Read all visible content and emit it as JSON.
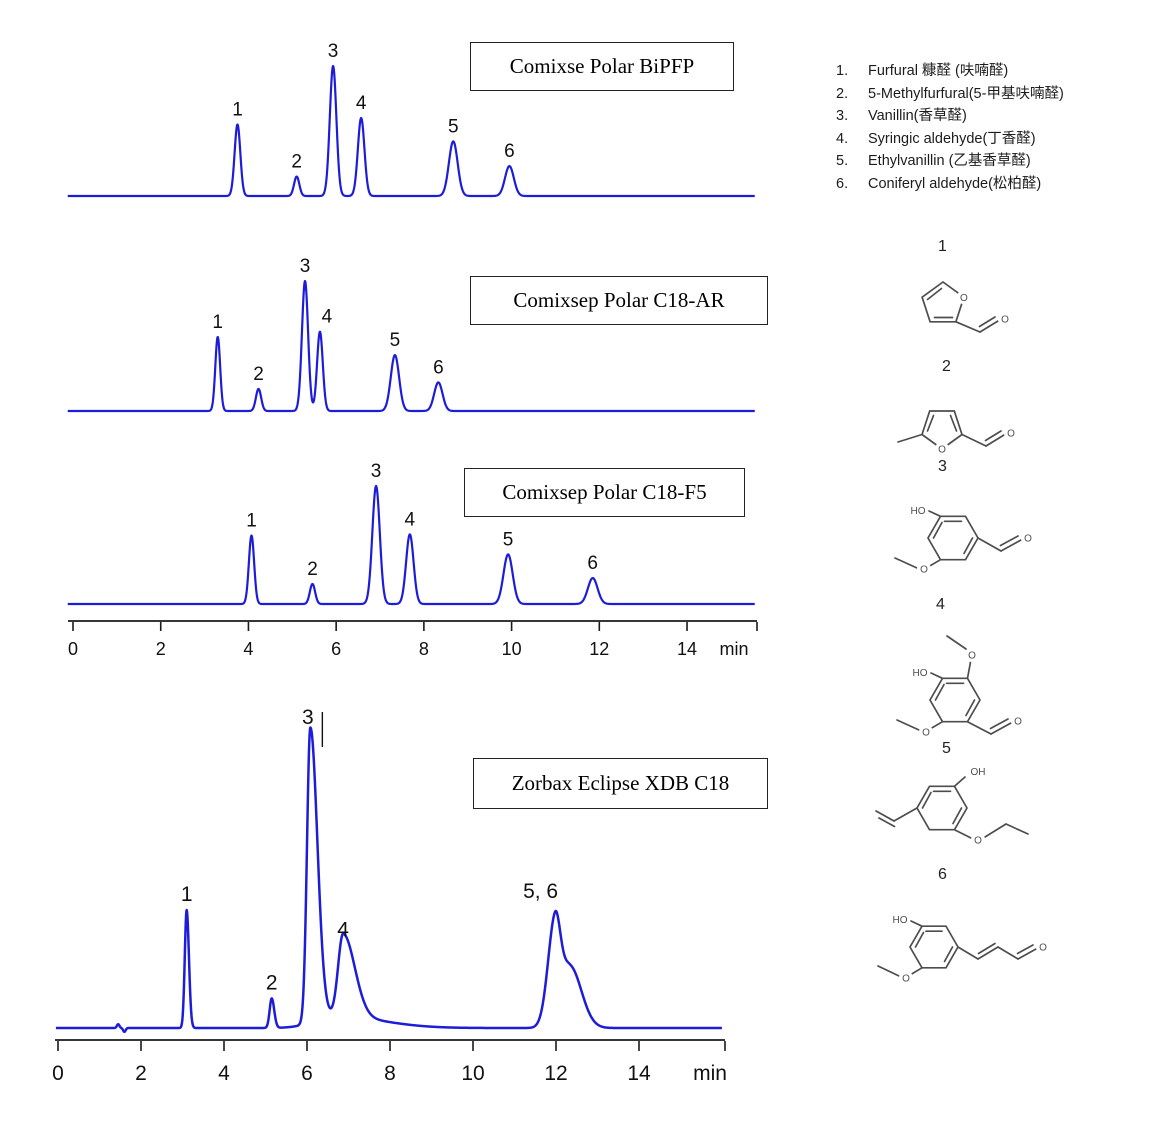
{
  "page": {
    "background": "#ffffff",
    "trace_color": "#1d1dd9",
    "axis_color": "#1a1a1a"
  },
  "legend": {
    "items": [
      {
        "num": "1.",
        "label": "Furfural 糠醛 (呋喃醛)"
      },
      {
        "num": "2.",
        "label": "5-Methylfurfural(5-甲基呋喃醛)"
      },
      {
        "num": "3.",
        "label": "Vanillin(香草醛)"
      },
      {
        "num": "4.",
        "label": "Syringic aldehyde(丁香醛)"
      },
      {
        "num": "5.",
        "label": "Ethylvanillin (乙基香草醛)"
      },
      {
        "num": "6.",
        "label": "Coniferyl aldehyde(松柏醛)"
      }
    ]
  },
  "structures": [
    {
      "label": "1",
      "name": "furfural"
    },
    {
      "label": "2",
      "name": "5-methylfurfural"
    },
    {
      "label": "3",
      "name": "vanillin"
    },
    {
      "label": "4",
      "name": "syringic-aldehyde"
    },
    {
      "label": "5",
      "name": "ethylvanillin"
    },
    {
      "label": "6",
      "name": "coniferyl-aldehyde"
    }
  ],
  "chart_data": {
    "type": "line",
    "x_axis": {
      "ticks": [
        0,
        2,
        4,
        6,
        8,
        10,
        12,
        14
      ],
      "unit_label": "min",
      "range_min": [
        0,
        15.6
      ]
    },
    "y_axis": {
      "label": "",
      "normalized": true
    },
    "trace_color": "#1d1dd9",
    "chromatograms": [
      {
        "title": "Comixse Polar BiPFP",
        "peaks": [
          {
            "label": "1",
            "rt": 3.75,
            "height": 0.55,
            "sigma": 0.065
          },
          {
            "label": "2",
            "rt": 5.1,
            "height": 0.15,
            "sigma": 0.06
          },
          {
            "label": "3",
            "rt": 5.93,
            "height": 1.0,
            "sigma": 0.075
          },
          {
            "label": "4",
            "rt": 6.57,
            "height": 0.6,
            "sigma": 0.075
          },
          {
            "label": "5",
            "rt": 8.67,
            "height": 0.42,
            "sigma": 0.1
          },
          {
            "label": "6",
            "rt": 9.95,
            "height": 0.23,
            "sigma": 0.1
          }
        ]
      },
      {
        "title": "Comixsep Polar C18-AR",
        "peaks": [
          {
            "label": "1",
            "rt": 3.3,
            "height": 0.57,
            "sigma": 0.055
          },
          {
            "label": "2",
            "rt": 4.23,
            "height": 0.17,
            "sigma": 0.06
          },
          {
            "label": "3",
            "rt": 5.29,
            "height": 1.0,
            "sigma": 0.07
          },
          {
            "label": "4",
            "rt": 5.63,
            "height": 0.61,
            "sigma": 0.065,
            "label_dx": 7
          },
          {
            "label": "5",
            "rt": 7.34,
            "height": 0.43,
            "sigma": 0.095
          },
          {
            "label": "6",
            "rt": 8.33,
            "height": 0.22,
            "sigma": 0.095
          }
        ]
      },
      {
        "title": "Comixsep Polar C18-F5",
        "peaks": [
          {
            "label": "1",
            "rt": 4.07,
            "height": 0.58,
            "sigma": 0.06
          },
          {
            "label": "2",
            "rt": 5.46,
            "height": 0.17,
            "sigma": 0.06
          },
          {
            "label": "3",
            "rt": 6.91,
            "height": 1.0,
            "sigma": 0.085
          },
          {
            "label": "4",
            "rt": 7.68,
            "height": 0.59,
            "sigma": 0.085
          },
          {
            "label": "5",
            "rt": 9.92,
            "height": 0.42,
            "sigma": 0.105
          },
          {
            "label": "6",
            "rt": 11.85,
            "height": 0.22,
            "sigma": 0.11
          }
        ]
      },
      {
        "title": "Zorbax Eclipse XDB C18",
        "peaks": [
          {
            "label": "1",
            "rt": 3.1,
            "height": 0.4,
            "sl": 0.045,
            "sr": 0.055
          },
          {
            "label": "2",
            "rt": 5.15,
            "height": 0.1,
            "sl": 0.05,
            "sr": 0.06
          },
          {
            "label": "3",
            "rt": 6.08,
            "height": 1.0,
            "sl": 0.08,
            "sr": 0.17,
            "label_rt": 6.02
          },
          {
            "label": "4",
            "rt": 6.87,
            "height": 0.28,
            "sl": 0.12,
            "sr": 0.28
          },
          {
            "label": "5, 6",
            "rt": 11.97,
            "height": 0.33,
            "sl": 0.17,
            "sr": 0.13,
            "label_rt": 11.63,
            "label_h": 0.41
          },
          {
            "label": null,
            "rt": 12.33,
            "height": 0.21,
            "sl": 0.23,
            "sr": 0.28
          }
        ],
        "extras": [
          {
            "rt": 6.7,
            "height": 0.04,
            "sl": 0.5,
            "sr": 1.1
          },
          {
            "rt": 1.45,
            "height": 0.013,
            "sl": 0.03,
            "sr": 0.03
          },
          {
            "rt": 1.6,
            "height": -0.013,
            "sl": 0.03,
            "sr": 0.03
          }
        ],
        "artifact_rt": 6.37
      }
    ]
  }
}
